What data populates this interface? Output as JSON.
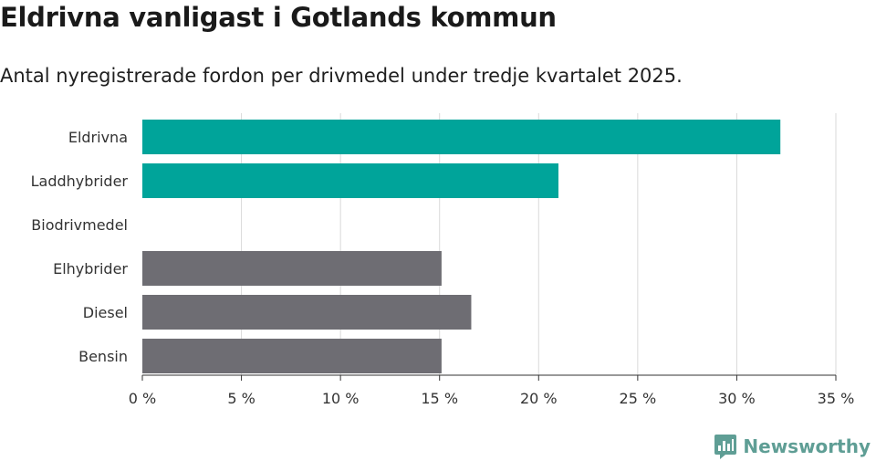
{
  "title": "Eldrivna vanligast i Gotlands kommun",
  "subtitle": "Antal nyregistrerade fordon per drivmedel under tredje kvartalet 2025.",
  "brand": {
    "name": "Newsworthy",
    "color": "#5f9e95"
  },
  "colors": {
    "highlight": "#00a49a",
    "default": "#6e6d73",
    "grid": "#d9d9d9",
    "axis": "#333333"
  },
  "chart_data": {
    "type": "bar",
    "orientation": "horizontal",
    "title": "Eldrivna vanligast i Gotlands kommun",
    "subtitle": "Antal nyregistrerade fordon per drivmedel under tredje kvartalet 2025.",
    "categories": [
      "Eldrivna",
      "Laddhybrider",
      "Biodrivmedel",
      "Elhybrider",
      "Diesel",
      "Bensin"
    ],
    "values": [
      32.2,
      21.0,
      0,
      15.1,
      16.6,
      15.1
    ],
    "highlighted": [
      true,
      true,
      false,
      false,
      false,
      false
    ],
    "unit": "%",
    "xlim": [
      0,
      35
    ],
    "xticks": [
      0,
      5,
      10,
      15,
      20,
      25,
      30,
      35
    ],
    "xtick_labels": [
      "0 %",
      "5 %",
      "10 %",
      "15 %",
      "20 %",
      "25 %",
      "30 %",
      "35 %"
    ],
    "xlabel": "",
    "ylabel": "",
    "grid": "vertical"
  }
}
